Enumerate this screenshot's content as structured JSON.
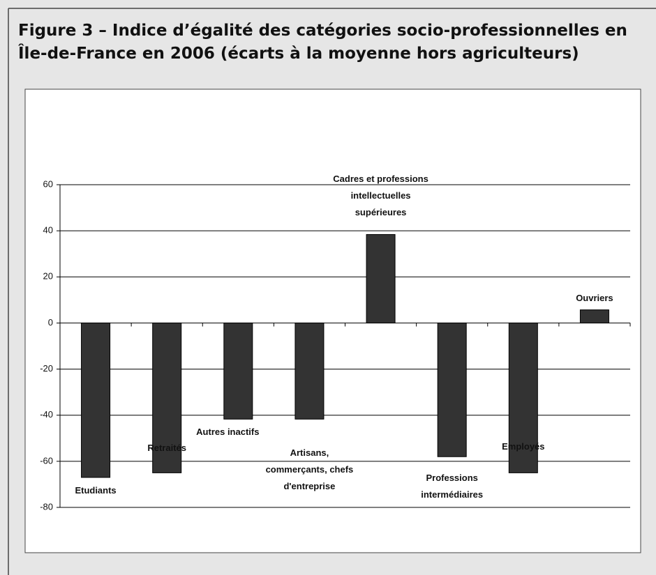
{
  "chart_data": {
    "type": "bar",
    "title": "Figure 3 – Indice d’égalité des catégories socio-professionnelles en\nÎle-de-France en 2006 (écarts à la moyenne hors agriculteurs)",
    "categories": [
      "Etudiants",
      "Retraités",
      "Autres inactifs",
      "Artisans,\ncommerçants, chefs\nd'entreprise",
      "Cadres et professions\nintellectuelles\nsupérieures",
      "Professions\nintermédiaires",
      "Employés",
      "Ouvriers"
    ],
    "values": [
      -67,
      -65,
      -41.7,
      -41.7,
      38.4,
      -58,
      -65,
      5.7
    ],
    "color": "#333333",
    "ylim": [
      -80,
      60
    ],
    "yticks": [
      -80,
      -60,
      -40,
      -20,
      0,
      20,
      40,
      60
    ],
    "grid": true
  }
}
